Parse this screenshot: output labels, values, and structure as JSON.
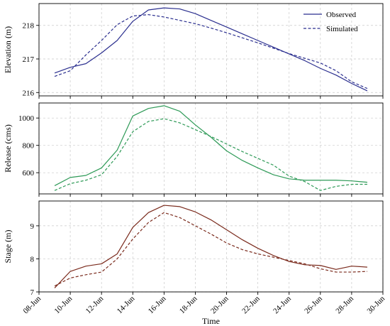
{
  "chart_data": [
    {
      "type": "line",
      "ylabel": "Elevation (m)",
      "xlabel": "",
      "ylim": [
        215.9,
        218.65
      ],
      "yticks": [
        216,
        217,
        218
      ],
      "xlim": [
        "08-Jun",
        "30-Jun"
      ],
      "grid": true,
      "legend": "top-right",
      "x": [
        "09-Jun",
        "10-Jun",
        "11-Jun",
        "12-Jun",
        "13-Jun",
        "14-Jun",
        "15-Jun",
        "16-Jun",
        "17-Jun",
        "18-Jun",
        "19-Jun",
        "20-Jun",
        "21-Jun",
        "22-Jun",
        "23-Jun",
        "24-Jun",
        "25-Jun",
        "26-Jun",
        "27-Jun",
        "28-Jun",
        "29-Jun"
      ],
      "series": [
        {
          "name": "Observed",
          "style": "solid",
          "color": "#2b2f8f",
          "values": [
            216.58,
            216.75,
            216.86,
            217.18,
            217.55,
            218.12,
            218.46,
            218.52,
            218.49,
            218.35,
            218.15,
            217.95,
            217.75,
            217.55,
            217.35,
            217.15,
            216.95,
            216.72,
            216.52,
            216.27,
            216.05
          ]
        },
        {
          "name": "Simulated",
          "style": "dashed",
          "color": "#2b2f8f",
          "values": [
            216.48,
            216.65,
            217.12,
            217.55,
            218.02,
            218.28,
            218.32,
            218.25,
            218.15,
            218.05,
            217.92,
            217.78,
            217.63,
            217.48,
            217.32,
            217.16,
            217.02,
            216.88,
            216.65,
            216.32,
            216.12
          ]
        }
      ]
    },
    {
      "type": "line",
      "ylabel": "Release (cms)",
      "xlabel": "",
      "ylim": [
        445,
        1110
      ],
      "yticks": [
        600,
        800,
        1000
      ],
      "xlim": [
        "08-Jun",
        "30-Jun"
      ],
      "grid": true,
      "x": [
        "09-Jun",
        "10-Jun",
        "11-Jun",
        "12-Jun",
        "13-Jun",
        "14-Jun",
        "15-Jun",
        "16-Jun",
        "17-Jun",
        "18-Jun",
        "19-Jun",
        "20-Jun",
        "21-Jun",
        "22-Jun",
        "23-Jun",
        "24-Jun",
        "25-Jun",
        "26-Jun",
        "27-Jun",
        "28-Jun",
        "29-Jun"
      ],
      "series": [
        {
          "name": "Observed",
          "style": "solid",
          "color": "#2e9a57",
          "values": [
            505,
            565,
            580,
            635,
            765,
            1015,
            1070,
            1090,
            1050,
            950,
            860,
            760,
            690,
            635,
            585,
            555,
            545,
            545,
            545,
            540,
            530
          ]
        },
        {
          "name": "Simulated",
          "style": "dashed",
          "color": "#2e9a57",
          "values": [
            470,
            520,
            545,
            585,
            720,
            900,
            975,
            995,
            965,
            915,
            865,
            810,
            755,
            705,
            655,
            575,
            535,
            470,
            500,
            515,
            515
          ]
        }
      ]
    },
    {
      "type": "line",
      "ylabel": "Stage (m)",
      "xlabel": "Time",
      "ylim": [
        7.0,
        9.75
      ],
      "yticks": [
        7,
        8,
        9
      ],
      "xlim": [
        "08-Jun",
        "30-Jun"
      ],
      "xticks": [
        "08-Jun",
        "10-Jun",
        "12-Jun",
        "14-Jun",
        "16-Jun",
        "18-Jun",
        "20-Jun",
        "22-Jun",
        "24-Jun",
        "26-Jun",
        "28-Jun",
        "30-Jun"
      ],
      "grid": true,
      "x": [
        "09-Jun",
        "10-Jun",
        "11-Jun",
        "12-Jun",
        "13-Jun",
        "14-Jun",
        "15-Jun",
        "16-Jun",
        "17-Jun",
        "18-Jun",
        "19-Jun",
        "20-Jun",
        "21-Jun",
        "22-Jun",
        "23-Jun",
        "24-Jun",
        "25-Jun",
        "26-Jun",
        "27-Jun",
        "28-Jun",
        "29-Jun"
      ],
      "series": [
        {
          "name": "Observed",
          "style": "solid",
          "color": "#7a2a1c",
          "values": [
            7.12,
            7.62,
            7.78,
            7.85,
            8.15,
            8.95,
            9.4,
            9.62,
            9.58,
            9.42,
            9.18,
            8.88,
            8.58,
            8.32,
            8.1,
            7.92,
            7.82,
            7.8,
            7.68,
            7.78,
            7.75
          ]
        },
        {
          "name": "Simulated",
          "style": "dashed",
          "color": "#7a2a1c",
          "values": [
            7.18,
            7.42,
            7.52,
            7.6,
            8.0,
            8.6,
            9.1,
            9.4,
            9.25,
            9.0,
            8.75,
            8.48,
            8.28,
            8.15,
            8.05,
            7.95,
            7.85,
            7.7,
            7.6,
            7.6,
            7.62
          ]
        }
      ]
    }
  ]
}
